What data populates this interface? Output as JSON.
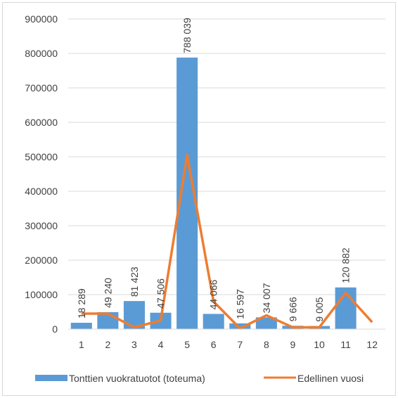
{
  "chart_data": {
    "type": "bar",
    "categories": [
      "1",
      "2",
      "3",
      "4",
      "5",
      "6",
      "7",
      "8",
      "9",
      "10",
      "11",
      "12"
    ],
    "series": [
      {
        "name": "Tonttien vuokratuotot (toteuma)",
        "kind": "bar",
        "color": "#5b9bd5",
        "values": [
          18289,
          49240,
          81423,
          47506,
          788039,
          44066,
          16597,
          34007,
          9666,
          9005,
          120882,
          null
        ],
        "labels": [
          "18 289",
          "49 240",
          "81 423",
          "47 506",
          "788 039",
          "44 066",
          "16 597",
          "34 007",
          "9 666",
          "9 005",
          "120 882",
          ""
        ]
      },
      {
        "name": "Edellinen vuosi",
        "kind": "line",
        "color": "#ed7d31",
        "values": [
          45000,
          45000,
          5000,
          25000,
          505000,
          80000,
          2000,
          40000,
          5000,
          5000,
          105000,
          20000
        ]
      }
    ],
    "ylim": [
      0,
      900000
    ],
    "yticks": [
      "0",
      "100000",
      "200000",
      "300000",
      "400000",
      "500000",
      "600000",
      "700000",
      "800000",
      "900000"
    ],
    "grid": true,
    "legend_position": "bottom"
  }
}
